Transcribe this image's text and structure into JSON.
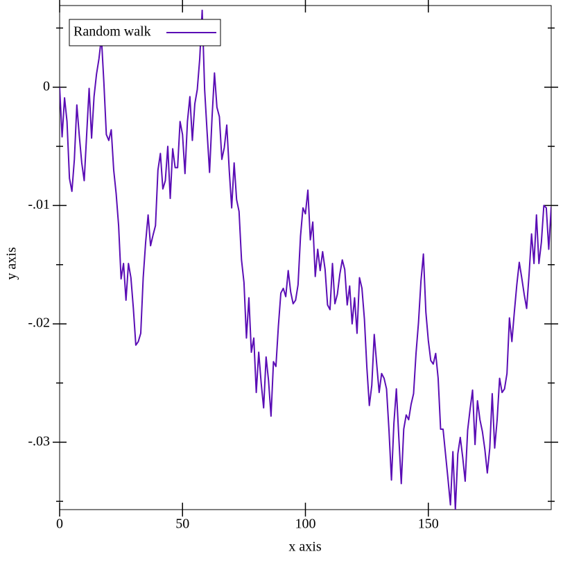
{
  "chart_data": {
    "type": "line",
    "x_label": "x axis",
    "y_label": "y axis",
    "x": [
      0,
      1,
      2,
      3,
      4,
      5,
      6,
      7,
      8,
      9,
      10,
      11,
      12,
      13,
      14,
      15,
      16,
      17,
      18,
      19,
      20,
      21,
      22,
      23,
      24,
      25,
      26,
      27,
      28,
      29,
      30,
      31,
      32,
      33,
      34,
      35,
      36,
      37,
      38,
      39,
      40,
      41,
      42,
      43,
      44,
      45,
      46,
      47,
      48,
      49,
      50,
      51,
      52,
      53,
      54,
      55,
      56,
      57,
      58,
      59,
      60,
      61,
      62,
      63,
      64,
      65,
      66,
      67,
      68,
      69,
      70,
      71,
      72,
      73,
      74,
      75,
      76,
      77,
      78,
      79,
      80,
      81,
      82,
      83,
      84,
      85,
      86,
      87,
      88,
      89,
      90,
      91,
      92,
      93,
      94,
      95,
      96,
      97,
      98,
      99,
      100,
      101,
      102,
      103,
      104,
      105,
      106,
      107,
      108,
      109,
      110,
      111,
      112,
      113,
      114,
      115,
      116,
      117,
      118,
      119,
      120,
      121,
      122,
      123,
      124,
      125,
      126,
      127,
      128,
      129,
      130,
      131,
      132,
      133,
      134,
      135,
      136,
      137,
      138,
      139,
      140,
      141,
      142,
      143,
      144,
      145,
      146,
      147,
      148,
      149,
      150,
      151,
      152,
      153,
      154,
      155,
      156,
      157,
      158,
      159,
      160,
      161,
      162,
      163,
      164,
      165,
      166,
      167,
      168,
      169,
      170,
      171,
      172,
      173,
      174,
      175,
      176,
      177,
      178,
      179,
      180,
      181,
      182,
      183,
      184,
      185,
      186,
      187,
      188,
      189,
      190,
      191,
      192,
      193,
      194,
      195,
      196,
      197,
      198,
      199,
      200
    ],
    "series": [
      {
        "name": "Random walk",
        "color": "#5a0db5",
        "values": [
          0,
          -0.0042,
          -0.0009,
          -0.0029,
          -0.0077,
          -0.0088,
          -0.0061,
          -0.0015,
          -0.0041,
          -0.0064,
          -0.0079,
          -0.004,
          -0.0001,
          -0.0043,
          -0.0008,
          0.0011,
          0.0024,
          0.0042,
          0.0004,
          -0.004,
          -0.0045,
          -0.0036,
          -0.007,
          -0.009,
          -0.0117,
          -0.0162,
          -0.0149,
          -0.018,
          -0.0149,
          -0.0161,
          -0.0187,
          -0.0218,
          -0.0215,
          -0.0208,
          -0.0161,
          -0.0131,
          -0.0108,
          -0.0134,
          -0.0125,
          -0.0117,
          -0.007,
          -0.0056,
          -0.0086,
          -0.0079,
          -0.005,
          -0.0094,
          -0.0052,
          -0.0068,
          -0.0068,
          -0.0029,
          -0.004,
          -0.0073,
          -0.0029,
          -0.0008,
          -0.0045,
          -0.0014,
          -0.0002,
          0.0024,
          0.0065,
          -0.0002,
          -0.0038,
          -0.0072,
          -0.0026,
          0.0012,
          -0.0017,
          -0.0025,
          -0.0061,
          -0.0051,
          -0.0032,
          -0.007,
          -0.0102,
          -0.0064,
          -0.0095,
          -0.0105,
          -0.0146,
          -0.0165,
          -0.0212,
          -0.0178,
          -0.0224,
          -0.0212,
          -0.0258,
          -0.0224,
          -0.025,
          -0.0271,
          -0.0228,
          -0.0248,
          -0.0278,
          -0.0232,
          -0.0236,
          -0.0202,
          -0.0174,
          -0.017,
          -0.0177,
          -0.0155,
          -0.0173,
          -0.0183,
          -0.018,
          -0.0167,
          -0.0126,
          -0.0102,
          -0.0107,
          -0.0087,
          -0.0129,
          -0.0114,
          -0.016,
          -0.0137,
          -0.0155,
          -0.0139,
          -0.0154,
          -0.0184,
          -0.0188,
          -0.0149,
          -0.0183,
          -0.0175,
          -0.0158,
          -0.0146,
          -0.0154,
          -0.0184,
          -0.0168,
          -0.02,
          -0.0178,
          -0.0208,
          -0.0161,
          -0.017,
          -0.0196,
          -0.0237,
          -0.0269,
          -0.0252,
          -0.0209,
          -0.0234,
          -0.0258,
          -0.0242,
          -0.0246,
          -0.0255,
          -0.029,
          -0.0332,
          -0.0284,
          -0.0255,
          -0.0296,
          -0.0335,
          -0.0289,
          -0.0277,
          -0.0281,
          -0.0268,
          -0.0259,
          -0.0225,
          -0.0199,
          -0.0164,
          -0.0141,
          -0.019,
          -0.0214,
          -0.0231,
          -0.0234,
          -0.0225,
          -0.0246,
          -0.0289,
          -0.0289,
          -0.031,
          -0.0331,
          -0.0353,
          -0.0308,
          -0.0357,
          -0.031,
          -0.0296,
          -0.0313,
          -0.0333,
          -0.029,
          -0.0272,
          -0.0256,
          -0.0302,
          -0.0265,
          -0.0281,
          -0.0291,
          -0.0306,
          -0.0326,
          -0.0305,
          -0.0259,
          -0.0305,
          -0.0281,
          -0.0246,
          -0.0258,
          -0.0255,
          -0.0242,
          -0.0195,
          -0.0215,
          -0.019,
          -0.0167,
          -0.0148,
          -0.0161,
          -0.0175,
          -0.0187,
          -0.0158,
          -0.0124,
          -0.0149,
          -0.0108,
          -0.0149,
          -0.0131,
          -0.01,
          -0.0102,
          -0.0137,
          -0.0101
        ]
      }
    ],
    "xlim": [
      0,
      200
    ],
    "ylim": [
      -0.0357,
      0.0069
    ],
    "xticks": [
      0,
      50,
      100,
      150
    ],
    "yticks": [
      0,
      {
        "value": -0.01,
        "label": "-.01"
      },
      {
        "value": -0.02,
        "label": "-.02"
      },
      {
        "value": -0.03,
        "label": "-.03"
      }
    ],
    "yminorticks": [
      0.005,
      -0.005,
      -0.015,
      -0.025,
      -0.035
    ],
    "legend": "upper left"
  }
}
